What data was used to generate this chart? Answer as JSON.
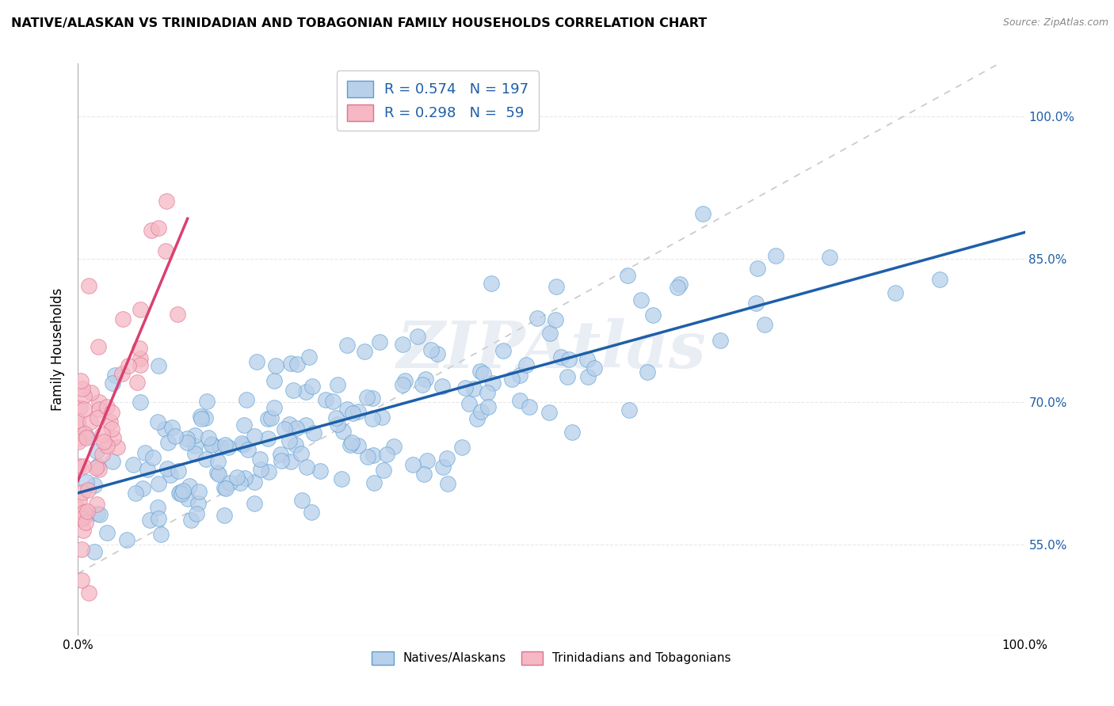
{
  "title": "NATIVE/ALASKAN VS TRINIDADIAN AND TOBAGONIAN FAMILY HOUSEHOLDS CORRELATION CHART",
  "source": "Source: ZipAtlas.com",
  "ylabel": "Family Households",
  "ytick_labels": [
    "55.0%",
    "70.0%",
    "85.0%",
    "100.0%"
  ],
  "ytick_values": [
    0.55,
    0.7,
    0.85,
    1.0
  ],
  "xlim": [
    0.0,
    1.0
  ],
  "ylim": [
    0.455,
    1.055
  ],
  "legend_blue_R": "0.574",
  "legend_blue_N": "197",
  "legend_pink_R": "0.298",
  "legend_pink_N": "59",
  "blue_fill_color": "#b8d0ea",
  "pink_fill_color": "#f5b8c4",
  "blue_edge_color": "#5a9fd4",
  "pink_edge_color": "#e07090",
  "blue_line_color": "#1e5fa8",
  "pink_line_color": "#d94070",
  "ref_line_color": "#c8c8c8",
  "watermark": "ZIPAtlas",
  "background_color": "#ffffff",
  "grid_color": "#e8e8e8",
  "blue_scatter_seed": 42,
  "pink_scatter_seed": 13
}
